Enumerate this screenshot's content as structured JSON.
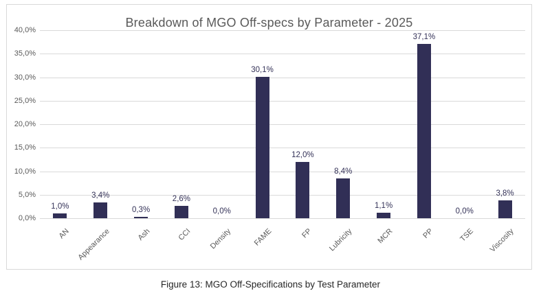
{
  "chart_data": {
    "type": "bar",
    "title": "Breakdown of MGO Off-specs by Parameter - 2025",
    "categories": [
      "AN",
      "Appearance",
      "Ash",
      "CCI",
      "Density",
      "FAME",
      "FP",
      "Lubricity",
      "MCR",
      "PP",
      "TSE",
      "Viscosity"
    ],
    "values": [
      1.0,
      3.4,
      0.3,
      2.6,
      0.0,
      30.1,
      12.0,
      8.4,
      1.1,
      37.1,
      0.0,
      3.8
    ],
    "value_labels": [
      "1,0%",
      "3,4%",
      "0,3%",
      "2,6%",
      "0,0%",
      "30,1%",
      "12,0%",
      "8,4%",
      "1,1%",
      "37,1%",
      "0,0%",
      "3,8%"
    ],
    "xlabel": "",
    "ylabel": "",
    "ylim": [
      0,
      40
    ],
    "y_step": 5,
    "y_tick_labels": [
      "0,0%",
      "5,0%",
      "10,0%",
      "15,0%",
      "20,0%",
      "25,0%",
      "30,0%",
      "35,0%",
      "40,0%"
    ],
    "grid": true,
    "legend_position": "none",
    "bar_color": "#312F56",
    "value_label_color": "#333157",
    "axis_text_color": "#595959",
    "gridline_color": "#D9D9D9",
    "title_color": "#595959",
    "border_color": "#D9D9D9"
  },
  "figure": {
    "caption": "Figure 13: MGO Off-Specifications by Test Parameter"
  }
}
